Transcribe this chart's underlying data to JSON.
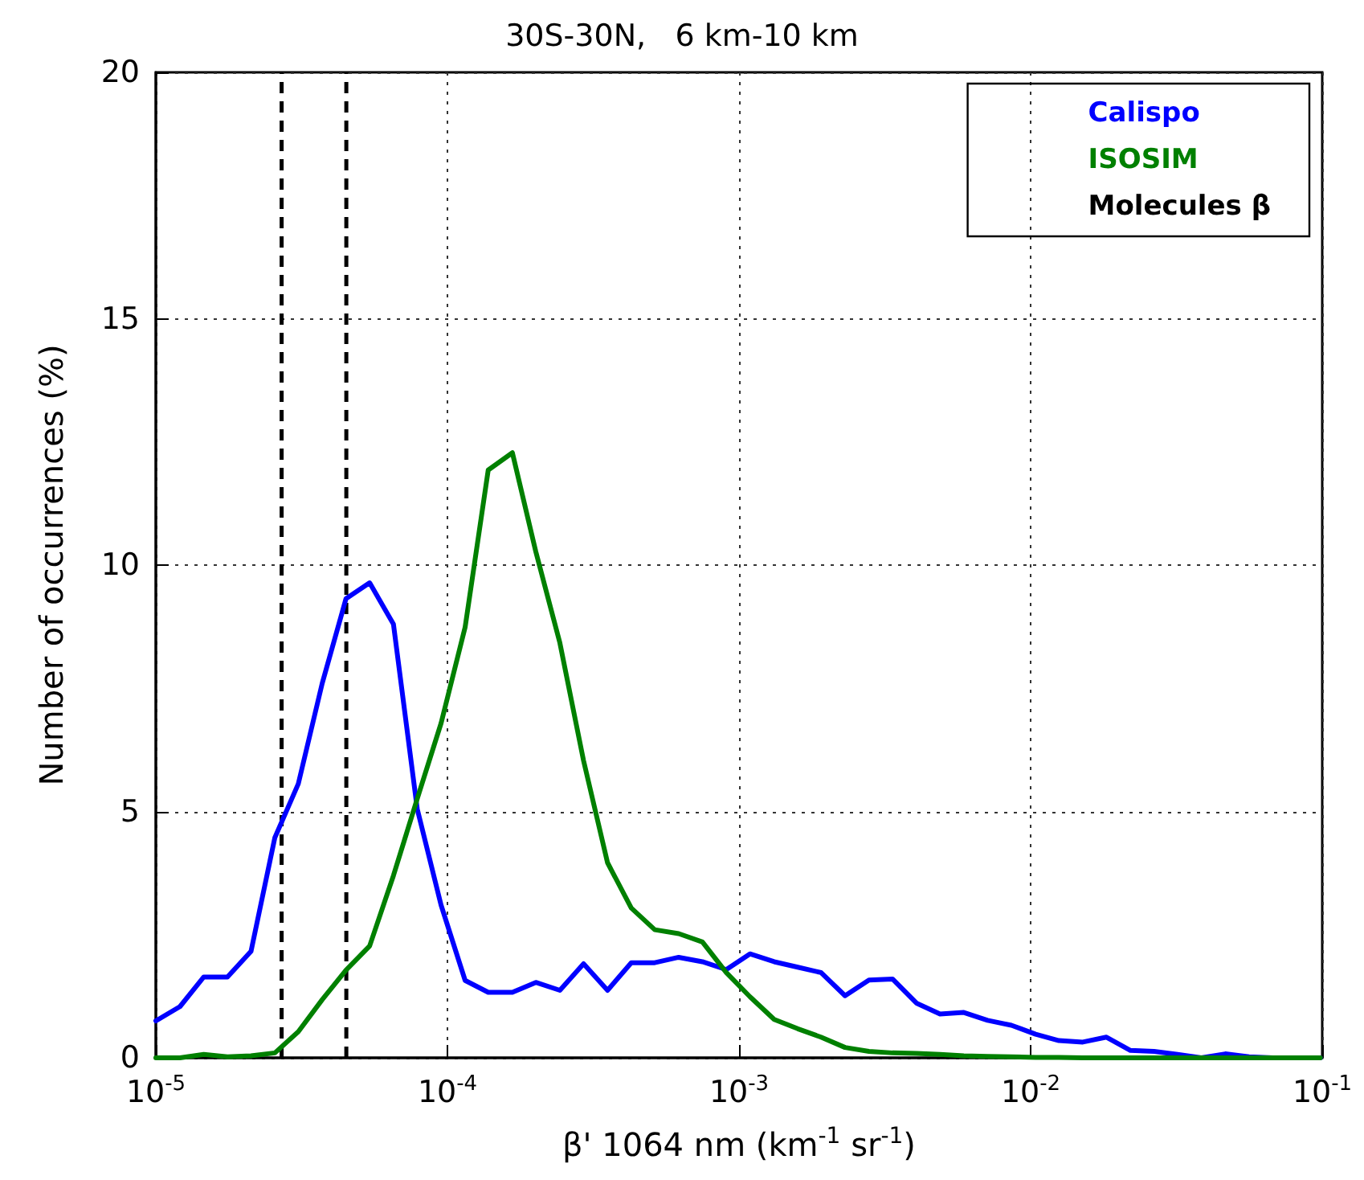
{
  "chart_data": {
    "type": "line",
    "title": "30S-30N,   6 km-10 km",
    "xlabel": "β' 1064 nm (km$^{-1}$ sr$^{-1}$)",
    "ylabel": "Number of occurrences (%)",
    "x": [
      1e-05,
      1.21e-05,
      1.46e-05,
      1.76e-05,
      2.12e-05,
      2.56e-05,
      3.08e-05,
      3.72e-05,
      4.49e-05,
      5.41e-05,
      6.53e-05,
      7.88e-05,
      9.51e-05,
      0.000115,
      0.000138,
      0.000167,
      0.000201,
      0.000243,
      0.000293,
      0.000354,
      0.000427,
      0.000514,
      0.000621,
      0.000749,
      0.000904,
      0.00109,
      0.00132,
      0.00159,
      0.00191,
      0.00231,
      0.00279,
      0.00336,
      0.00406,
      0.00489,
      0.0059,
      0.00712,
      0.00859,
      0.0104,
      0.0125,
      0.0151,
      0.0182,
      0.022,
      0.0265,
      0.0319,
      0.0385,
      0.0465,
      0.0561,
      0.0677,
      0.0817,
      0.0985
    ],
    "series": [
      {
        "name": "Calispo",
        "color": "#0000ff",
        "values": [
          0.75,
          1.04,
          1.64,
          1.64,
          2.16,
          4.47,
          5.56,
          7.6,
          9.32,
          9.64,
          8.8,
          5.05,
          3.1,
          1.57,
          1.33,
          1.33,
          1.53,
          1.37,
          1.91,
          1.37,
          1.93,
          1.93,
          2.04,
          1.95,
          1.79,
          2.11,
          1.95,
          1.84,
          1.73,
          1.26,
          1.58,
          1.6,
          1.11,
          0.89,
          0.92,
          0.76,
          0.66,
          0.48,
          0.35,
          0.32,
          0.42,
          0.15,
          0.13,
          0.07,
          0,
          0.08,
          0.02,
          0,
          0,
          0
        ]
      },
      {
        "name": "ISOSIM",
        "color": "#008000",
        "values": [
          0,
          0,
          0.07,
          0.02,
          0.04,
          0.1,
          0.53,
          1.18,
          1.78,
          2.27,
          3.7,
          5.26,
          6.79,
          8.74,
          11.93,
          12.28,
          10.27,
          8.42,
          6.03,
          3.96,
          3.04,
          2.6,
          2.52,
          2.35,
          1.73,
          1.24,
          0.78,
          0.59,
          0.42,
          0.21,
          0.13,
          0.1,
          0.09,
          0.07,
          0.04,
          0.03,
          0.02,
          0.01,
          0.01,
          0,
          0,
          0,
          0,
          0,
          0,
          0,
          0,
          0,
          0,
          0
        ]
      }
    ],
    "ref_lines": [
      {
        "axis": "x",
        "value": 2.7e-05,
        "label": "Molecules β",
        "color": "#000000",
        "line_style": "dashed"
      },
      {
        "axis": "x",
        "value": 4.5e-05,
        "label": null,
        "color": "#000000",
        "line_style": "dashed"
      }
    ],
    "log": "x",
    "xlim": [
      1e-05,
      0.1
    ],
    "xticks": [
      {
        "value": 1e-05,
        "label": "10$^{-5}$"
      },
      {
        "value": 0.0001,
        "label": "10$^{-4}$"
      },
      {
        "value": 0.001,
        "label": "10$^{-3}$"
      },
      {
        "value": 0.01,
        "label": "10$^{-2}$"
      },
      {
        "value": 0.1,
        "label": "10$^{-1}$"
      }
    ],
    "ylim": [
      0,
      20
    ],
    "yticks": [
      0,
      5,
      10,
      15,
      20
    ],
    "grid": true,
    "legend": "top right",
    "marker": "none",
    "line_style": "solid"
  }
}
